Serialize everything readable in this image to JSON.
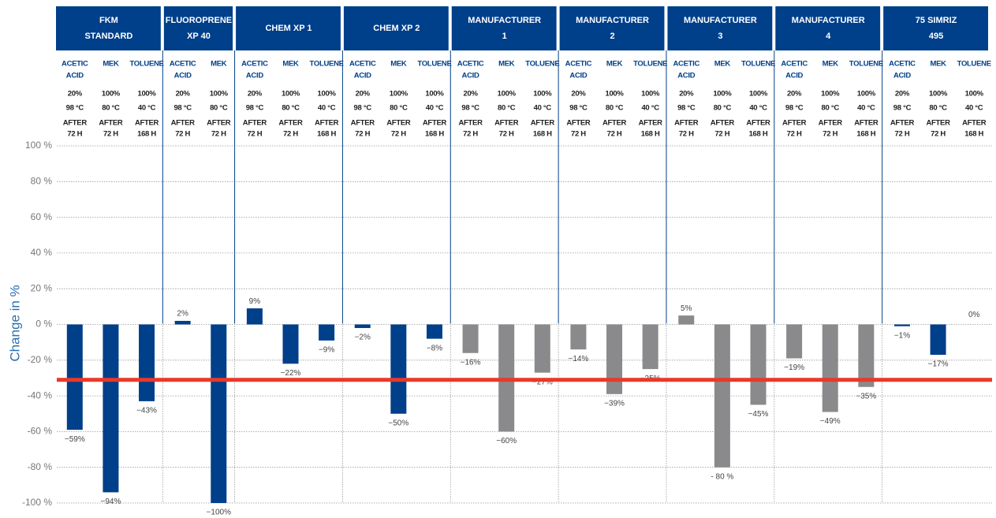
{
  "chart_data": {
    "type": "bar",
    "y_label": "Change in %",
    "ylim": [
      -100,
      100
    ],
    "yticks": [
      {
        "value": 100,
        "label": "100 %"
      },
      {
        "value": 80,
        "label": "80 %"
      },
      {
        "value": 60,
        "label": "60 %"
      },
      {
        "value": 40,
        "label": "40 %"
      },
      {
        "value": 20,
        "label": "20 %"
      },
      {
        "value": 0,
        "label": "0 %"
      },
      {
        "value": -20,
        "label": "-20 %"
      },
      {
        "value": -40,
        "label": "-40 %"
      },
      {
        "value": -60,
        "label": "-60 %"
      },
      {
        "value": -80,
        "label": "-80 %"
      },
      {
        "value": -100,
        "label": "-100 %"
      }
    ],
    "grid": true,
    "reference_line": {
      "value": -31,
      "color": "#e8392a"
    },
    "groups": [
      {
        "name": [
          "FKM",
          "STANDARD"
        ],
        "color": "#003f8a",
        "conditions": [
          {
            "chemical": [
              "ACETIC",
              "ACID"
            ],
            "concentration": "20%",
            "temperature": "98 °C",
            "duration": [
              "AFTER",
              "72 H"
            ]
          },
          {
            "chemical": [
              "MEK"
            ],
            "concentration": "100%",
            "temperature": "80 °C",
            "duration": [
              "AFTER",
              "72 H"
            ]
          },
          {
            "chemical": [
              "TOLUENE"
            ],
            "concentration": "100%",
            "temperature": "40 °C",
            "duration": [
              "AFTER",
              "168 H"
            ]
          }
        ],
        "values": [
          -59,
          -94,
          -43
        ],
        "value_labels": [
          "−59%",
          "−94%",
          "−43%"
        ]
      },
      {
        "name": [
          "FLUOROPRENE",
          "XP 40"
        ],
        "color": "#003f8a",
        "conditions": [
          {
            "chemical": [
              "ACETIC",
              "ACID"
            ],
            "concentration": "20%",
            "temperature": "98 °C",
            "duration": [
              "AFTER",
              "72 H"
            ]
          },
          {
            "chemical": [
              "MEK"
            ],
            "concentration": "100%",
            "temperature": "80 °C",
            "duration": [
              "AFTER",
              "72 H"
            ]
          }
        ],
        "values": [
          2,
          -100
        ],
        "value_labels": [
          "2%",
          "−100%"
        ]
      },
      {
        "name": [
          "CHEM XP 1"
        ],
        "color": "#003f8a",
        "conditions": [
          {
            "chemical": [
              "ACETIC",
              "ACID"
            ],
            "concentration": "20%",
            "temperature": "98 °C",
            "duration": [
              "AFTER",
              "72 H"
            ]
          },
          {
            "chemical": [
              "MEK"
            ],
            "concentration": "100%",
            "temperature": "80 °C",
            "duration": [
              "AFTER",
              "72 H"
            ]
          },
          {
            "chemical": [
              "TOLUENE"
            ],
            "concentration": "100%",
            "temperature": "40 °C",
            "duration": [
              "AFTER",
              "168 H"
            ]
          }
        ],
        "values": [
          9,
          -22,
          -9
        ],
        "value_labels": [
          "9%",
          "−22%",
          "−9%"
        ]
      },
      {
        "name": [
          "CHEM XP 2"
        ],
        "color": "#003f8a",
        "conditions": [
          {
            "chemical": [
              "ACETIC",
              "ACID"
            ],
            "concentration": "20%",
            "temperature": "98 °C",
            "duration": [
              "AFTER",
              "72 H"
            ]
          },
          {
            "chemical": [
              "MEK"
            ],
            "concentration": "100%",
            "temperature": "80 °C",
            "duration": [
              "AFTER",
              "72 H"
            ]
          },
          {
            "chemical": [
              "TOLUENE"
            ],
            "concentration": "100%",
            "temperature": "40 °C",
            "duration": [
              "AFTER",
              "168 H"
            ]
          }
        ],
        "values": [
          -2,
          -50,
          -8
        ],
        "value_labels": [
          "−2%",
          "−50%",
          "−8%"
        ]
      },
      {
        "name": [
          "MANUFACTURER",
          "1"
        ],
        "color": "#8a8a8c",
        "conditions": [
          {
            "chemical": [
              "ACETIC",
              "ACID"
            ],
            "concentration": "20%",
            "temperature": "98 °C",
            "duration": [
              "AFTER",
              "72 H"
            ]
          },
          {
            "chemical": [
              "MEK"
            ],
            "concentration": "100%",
            "temperature": "80 °C",
            "duration": [
              "AFTER",
              "72 H"
            ]
          },
          {
            "chemical": [
              "TOLUENE"
            ],
            "concentration": "100%",
            "temperature": "40 °C",
            "duration": [
              "AFTER",
              "168 H"
            ]
          }
        ],
        "values": [
          -16,
          -60,
          -27
        ],
        "value_labels": [
          "−16%",
          "−60%",
          "−27%"
        ]
      },
      {
        "name": [
          "MANUFACTURER",
          "2"
        ],
        "color": "#8a8a8c",
        "conditions": [
          {
            "chemical": [
              "ACETIC",
              "ACID"
            ],
            "concentration": "20%",
            "temperature": "98 °C",
            "duration": [
              "AFTER",
              "72 H"
            ]
          },
          {
            "chemical": [
              "MEK"
            ],
            "concentration": "100%",
            "temperature": "80 °C",
            "duration": [
              "AFTER",
              "72 H"
            ]
          },
          {
            "chemical": [
              "TOLUENE"
            ],
            "concentration": "100%",
            "temperature": "40 °C",
            "duration": [
              "AFTER",
              "168 H"
            ]
          }
        ],
        "values": [
          -14,
          -39,
          -25
        ],
        "value_labels": [
          "−14%",
          "−39%",
          "−25%"
        ]
      },
      {
        "name": [
          "MANUFACTURER",
          "3"
        ],
        "color": "#8a8a8c",
        "conditions": [
          {
            "chemical": [
              "ACETIC",
              "ACID"
            ],
            "concentration": "20%",
            "temperature": "98 °C",
            "duration": [
              "AFTER",
              "72 H"
            ]
          },
          {
            "chemical": [
              "MEK"
            ],
            "concentration": "100%",
            "temperature": "80 °C",
            "duration": [
              "AFTER",
              "72 H"
            ]
          },
          {
            "chemical": [
              "TOLUENE"
            ],
            "concentration": "100%",
            "temperature": "40 °C",
            "duration": [
              "AFTER",
              "168 H"
            ]
          }
        ],
        "values": [
          5,
          -80,
          -45
        ],
        "value_labels": [
          "5%",
          "- 80 %",
          "−45%"
        ]
      },
      {
        "name": [
          "MANUFACTURER",
          "4"
        ],
        "color": "#8a8a8c",
        "conditions": [
          {
            "chemical": [
              "ACETIC",
              "ACID"
            ],
            "concentration": "20%",
            "temperature": "98 °C",
            "duration": [
              "AFTER",
              "72 H"
            ]
          },
          {
            "chemical": [
              "MEK"
            ],
            "concentration": "100%",
            "temperature": "80 °C",
            "duration": [
              "AFTER",
              "72 H"
            ]
          },
          {
            "chemical": [
              "TOLUENE"
            ],
            "concentration": "100%",
            "temperature": "40 °C",
            "duration": [
              "AFTER",
              "168 H"
            ]
          }
        ],
        "values": [
          -19,
          -49,
          -35
        ],
        "value_labels": [
          "−19%",
          "−49%",
          "−35%"
        ]
      },
      {
        "name": [
          "75 SIMRIZ",
          "495"
        ],
        "color": "#003f8a",
        "conditions": [
          {
            "chemical": [
              "ACETIC",
              "ACID"
            ],
            "concentration": "20%",
            "temperature": "98 °C",
            "duration": [
              "AFTER",
              "72 H"
            ]
          },
          {
            "chemical": [
              "MEK"
            ],
            "concentration": "100%",
            "temperature": "80 °C",
            "duration": [
              "AFTER",
              "72 H"
            ]
          },
          {
            "chemical": [
              "TOLUENE"
            ],
            "concentration": "100%",
            "temperature": "40 °C",
            "duration": [
              "AFTER",
              "168 H"
            ]
          }
        ],
        "values": [
          -1,
          -17,
          0
        ],
        "value_labels": [
          "−1%",
          "−17%",
          "0%"
        ]
      }
    ]
  }
}
